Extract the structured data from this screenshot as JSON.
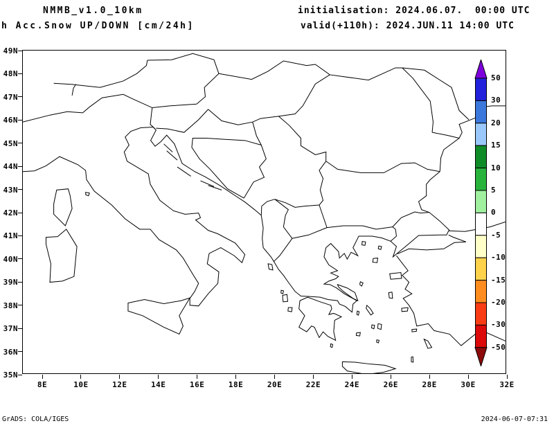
{
  "header": {
    "model": "NMMB_v1.0_10km",
    "product": "h Acc.Snow UP/DOWN [cm/24h]",
    "init_label": "initialisation: 2024.06.07.  00:00 UTC",
    "valid_label": "valid(+110h): 2024.JUN.11 14:00 UTC"
  },
  "map": {
    "lat_ticks": [
      "49N",
      "48N",
      "47N",
      "46N",
      "45N",
      "44N",
      "43N",
      "42N",
      "41N",
      "40N",
      "39N",
      "38N",
      "37N",
      "36N",
      "35N"
    ],
    "lon_ticks": [
      "8E",
      "10E",
      "12E",
      "14E",
      "16E",
      "18E",
      "20E",
      "22E",
      "24E",
      "26E",
      "28E",
      "30E",
      "32E"
    ]
  },
  "colorbar": {
    "labels": [
      "50",
      "30",
      "20",
      "15",
      "10",
      "5",
      "0",
      "-5",
      "-10",
      "-15",
      "-20",
      "-30",
      "-50"
    ],
    "arrow_up_color": "#7d00dc",
    "segment_colors": [
      "#2222dc",
      "#3c78dc",
      "#9ac8fa",
      "#0f8c28",
      "#28b43c",
      "#a0f0a0",
      "#ffffff",
      "#ffffc8",
      "#ffd24b",
      "#ff8c1e",
      "#fa3c14",
      "#dc0a0a"
    ],
    "arrow_down_color": "#8c0a0a"
  },
  "footer": {
    "credit": "GrADS: COLA/IGES",
    "timestamp": "2024-06-07-07:31"
  }
}
